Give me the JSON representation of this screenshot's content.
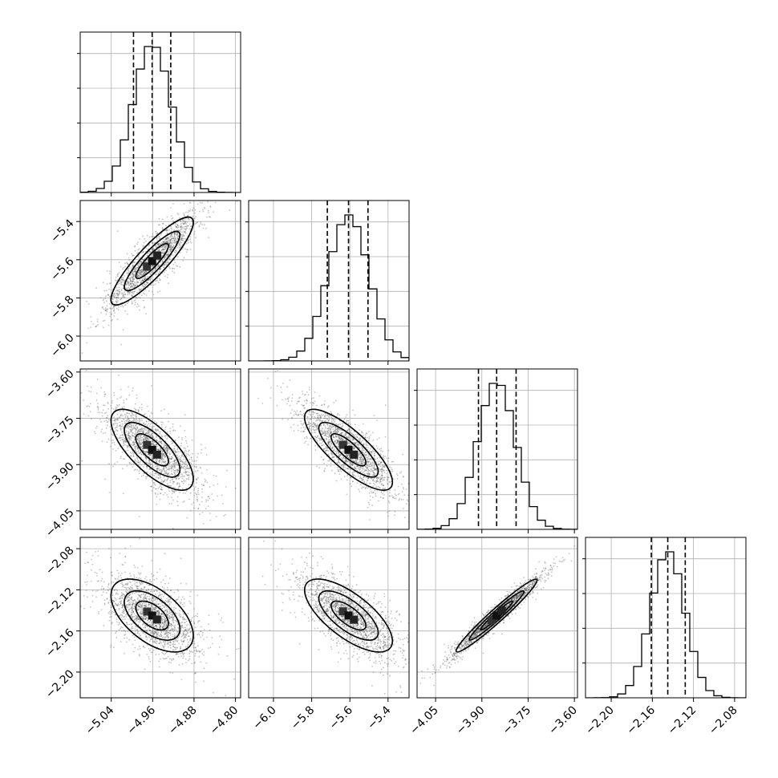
{
  "chart_data": {
    "type": "corner",
    "parameters": [
      {
        "ticks": [
          "−5.04",
          "−4.96",
          "−4.88",
          "−4.80"
        ],
        "tick_values": [
          -5.04,
          -4.96,
          -4.88,
          -4.8
        ],
        "range": [
          -5.1,
          -4.79
        ],
        "quantiles": [
          -4.997,
          -4.961,
          -4.925
        ],
        "median": -4.961,
        "sigma": 0.037
      },
      {
        "ticks": [
          "−6.0",
          "−5.8",
          "−5.6",
          "−5.4"
        ],
        "tick_values": [
          -6.0,
          -5.8,
          -5.6,
          -5.4
        ],
        "range": [
          -6.13,
          -5.29
        ],
        "quantiles": [
          -5.718,
          -5.607,
          -5.505
        ],
        "median": -5.607,
        "sigma": 0.107
      },
      {
        "ticks": [
          "−4.05",
          "−3.90",
          "−3.75",
          "−3.60"
        ],
        "tick_values": [
          -4.05,
          -3.9,
          -3.75,
          -3.6
        ],
        "range": [
          -4.11,
          -3.59
        ],
        "quantiles": [
          -3.911,
          -3.852,
          -3.789
        ],
        "median": -3.852,
        "sigma": 0.061
      },
      {
        "ticks": [
          "−2.20",
          "−2.16",
          "−2.12",
          "−2.08"
        ],
        "tick_values": [
          -2.2,
          -2.16,
          -2.12,
          -2.08
        ],
        "range": [
          -2.225,
          -2.069
        ],
        "quantiles": [
          -2.161,
          -2.145,
          -2.128
        ],
        "median": -2.145,
        "sigma": 0.0165
      }
    ],
    "correlations": [
      [
        1.0,
        0.88,
        -0.72,
        -0.55
      ],
      [
        0.88,
        1.0,
        -0.8,
        -0.7
      ],
      [
        -0.72,
        -0.8,
        1.0,
        0.97
      ],
      [
        -0.55,
        -0.7,
        0.97,
        1.0
      ]
    ],
    "quantile_levels": [
      0.16,
      0.5,
      0.84
    ],
    "histogram_bins": 20,
    "grid": true
  }
}
